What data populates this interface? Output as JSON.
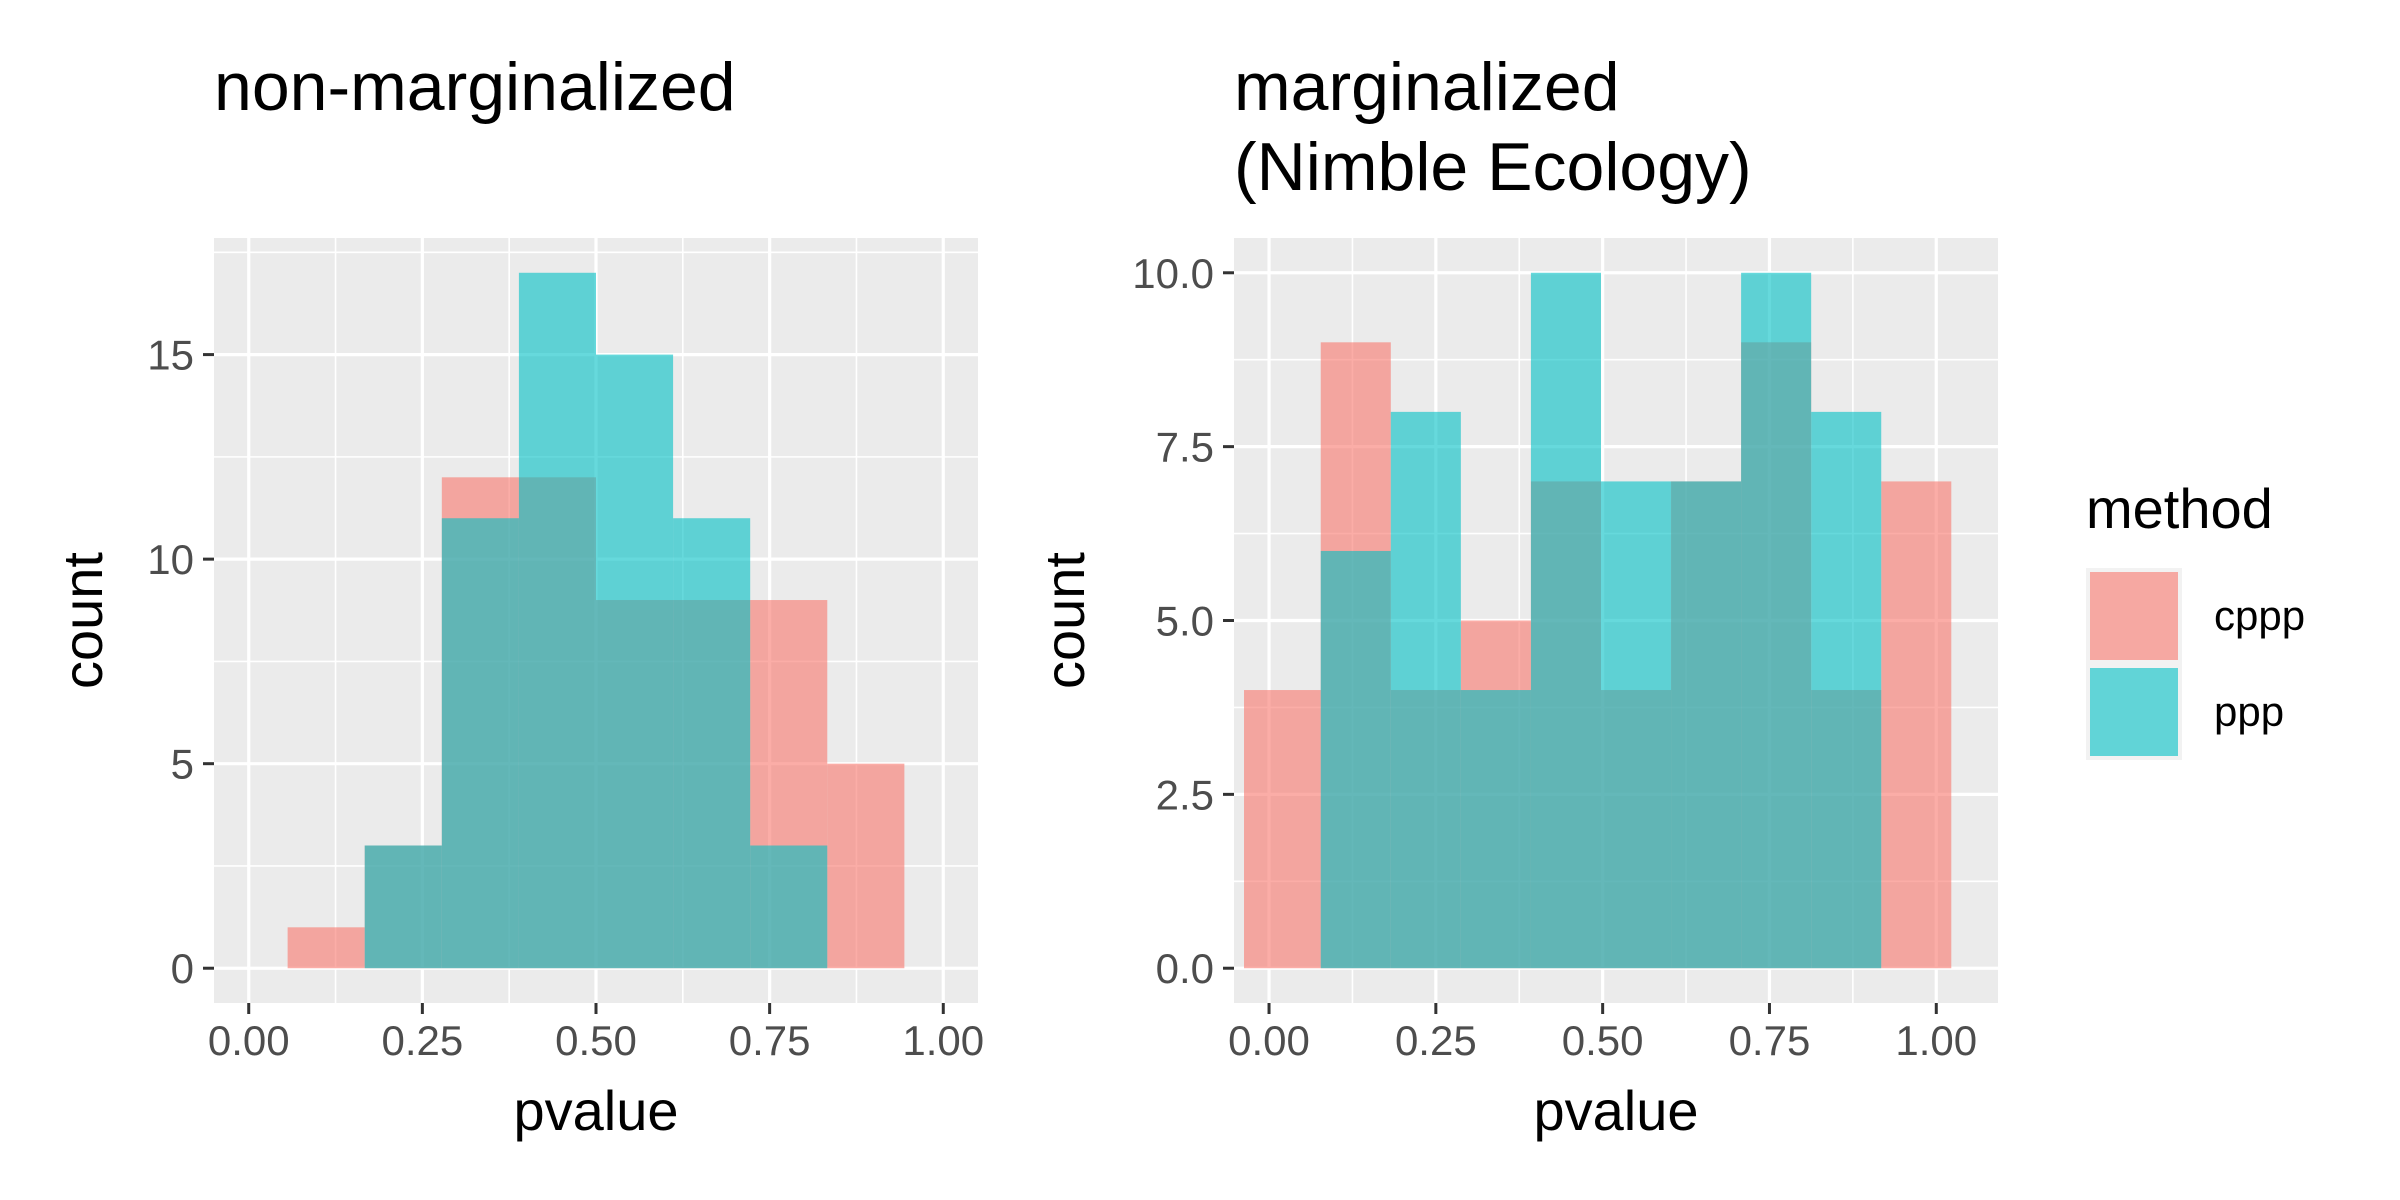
{
  "legend": {
    "title": "method",
    "items": [
      {
        "label": "cppp",
        "color": "#F8766D"
      },
      {
        "label": "ppp",
        "color": "#00BFC4"
      }
    ]
  },
  "chart_data": [
    {
      "type": "bar",
      "subtype": "overlapping-histogram",
      "title": "non-marginalized",
      "xlabel": "pvalue",
      "ylabel": "count",
      "xlim": [
        -0.05,
        1.05
      ],
      "ylim": [
        -0.85,
        17.85
      ],
      "xticks": [
        "0.00",
        "0.25",
        "0.50",
        "0.75",
        "1.00"
      ],
      "yticks": [
        "0",
        "5",
        "10",
        "15"
      ],
      "grid": true,
      "series": [
        {
          "name": "cppp",
          "bins": [
            {
              "x0": 0.056,
              "x1": 0.167,
              "count": 1
            },
            {
              "x0": 0.167,
              "x1": 0.278,
              "count": 3
            },
            {
              "x0": 0.278,
              "x1": 0.389,
              "count": 12
            },
            {
              "x0": 0.389,
              "x1": 0.5,
              "count": 12
            },
            {
              "x0": 0.5,
              "x1": 0.611,
              "count": 9
            },
            {
              "x0": 0.611,
              "x1": 0.722,
              "count": 9
            },
            {
              "x0": 0.722,
              "x1": 0.833,
              "count": 9
            },
            {
              "x0": 0.833,
              "x1": 0.944,
              "count": 5
            }
          ]
        },
        {
          "name": "ppp",
          "bins": [
            {
              "x0": 0.167,
              "x1": 0.278,
              "count": 3
            },
            {
              "x0": 0.278,
              "x1": 0.389,
              "count": 11
            },
            {
              "x0": 0.389,
              "x1": 0.5,
              "count": 17
            },
            {
              "x0": 0.5,
              "x1": 0.611,
              "count": 15
            },
            {
              "x0": 0.611,
              "x1": 0.722,
              "count": 11
            },
            {
              "x0": 0.722,
              "x1": 0.833,
              "count": 3
            }
          ]
        }
      ]
    },
    {
      "type": "bar",
      "subtype": "overlapping-histogram",
      "title": "marginalized\n(Nimble Ecology)",
      "xlabel": "pvalue",
      "ylabel": "count",
      "xlim": [
        -0.0525,
        1.0925
      ],
      "ylim": [
        -0.5,
        10.5
      ],
      "xticks": [
        "0.00",
        "0.25",
        "0.50",
        "0.75",
        "1.00"
      ],
      "yticks": [
        "0.0",
        "2.5",
        "5.0",
        "7.5",
        "10.0"
      ],
      "grid": true,
      "series": [
        {
          "name": "cppp",
          "bins": [
            {
              "x0": -0.0375,
              "x1": 0.0775,
              "count": 4
            },
            {
              "x0": 0.0775,
              "x1": 0.1825,
              "count": 9
            },
            {
              "x0": 0.1825,
              "x1": 0.2875,
              "count": 4
            },
            {
              "x0": 0.2875,
              "x1": 0.3925,
              "count": 5
            },
            {
              "x0": 0.3925,
              "x1": 0.4975,
              "count": 7
            },
            {
              "x0": 0.4975,
              "x1": 0.6025,
              "count": 4
            },
            {
              "x0": 0.6025,
              "x1": 0.7075,
              "count": 7
            },
            {
              "x0": 0.7075,
              "x1": 0.8125,
              "count": 9
            },
            {
              "x0": 0.8125,
              "x1": 0.9175,
              "count": 4
            },
            {
              "x0": 0.9175,
              "x1": 1.0225,
              "count": 7
            }
          ]
        },
        {
          "name": "ppp",
          "bins": [
            {
              "x0": 0.0775,
              "x1": 0.1825,
              "count": 6
            },
            {
              "x0": 0.1825,
              "x1": 0.2875,
              "count": 8
            },
            {
              "x0": 0.2875,
              "x1": 0.3925,
              "count": 4
            },
            {
              "x0": 0.3925,
              "x1": 0.4975,
              "count": 10
            },
            {
              "x0": 0.4975,
              "x1": 0.6025,
              "count": 7
            },
            {
              "x0": 0.6025,
              "x1": 0.7075,
              "count": 7
            },
            {
              "x0": 0.7075,
              "x1": 0.8125,
              "count": 10
            },
            {
              "x0": 0.8125,
              "x1": 0.9175,
              "count": 8
            }
          ]
        }
      ]
    }
  ]
}
